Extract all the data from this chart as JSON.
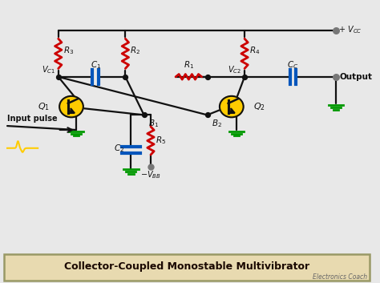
{
  "bg_color": "#e8e8e8",
  "title": "Collector-Coupled Monostable Multivibrator",
  "subtitle": "Electronics Coach",
  "red_color": "#cc0000",
  "blue_color": "#0055bb",
  "yellow_color": "#ffcc00",
  "green_color": "#009900",
  "white_color": "#ffffff",
  "gray_color": "#777777",
  "dark_color": "#111111",
  "title_bg": "#e8dab0",
  "title_border": "#999966",
  "wire_color": "#111111"
}
